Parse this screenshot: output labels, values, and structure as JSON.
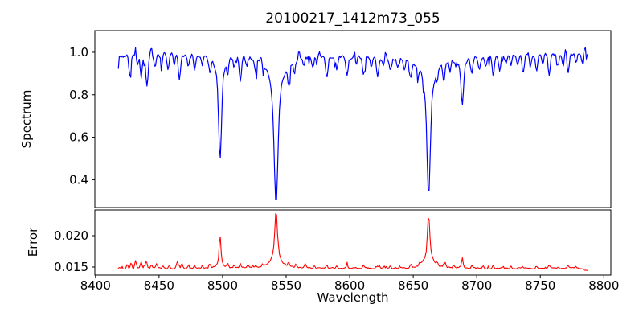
{
  "figure": {
    "background": "#ffffff",
    "frame_color": "#000000"
  },
  "chart_data": {
    "type": "line",
    "title": "20100217_1412m73_055",
    "xlabel": "Wavelength",
    "legend": "none",
    "grid": false,
    "xlim": [
      8399.5,
      8805.5
    ],
    "xticks": [
      8400,
      8450,
      8500,
      8550,
      8600,
      8650,
      8700,
      8750,
      8800
    ],
    "x_start": 8418,
    "x_end": 8787.5,
    "sample_step": 0.75,
    "noise_seed": 7,
    "panels": [
      {
        "id": "spectrum",
        "ylabel": "Spectrum",
        "line_color": "#0000ff",
        "ylim": [
          0.269,
          1.102
        ],
        "yticks": [
          0.4,
          0.6,
          0.8,
          1.0
        ],
        "ytick_labels": [
          "0.4",
          "0.6",
          "0.8",
          "1.0"
        ],
        "continuum": 0.982,
        "noise_amplitude": 0.016,
        "micro_dip_probability": 0.09,
        "micro_dip_max_depth": 0.05,
        "wiggle_amplitude": 0.008,
        "absorption_lines": [
          [
            8427,
            0.085,
            1.2
          ],
          [
            8433,
            0.05,
            0.9
          ],
          [
            8436,
            0.1,
            1.1
          ],
          [
            8440.5,
            0.155,
            1.3
          ],
          [
            8447,
            0.06,
            1.1
          ],
          [
            8452,
            0.05,
            1.0
          ],
          [
            8457,
            0.075,
            1.2
          ],
          [
            8462,
            0.05,
            1.0
          ],
          [
            8466,
            0.115,
            1.1
          ],
          [
            8473,
            0.055,
            1.0
          ],
          [
            8478,
            0.065,
            1.1
          ],
          [
            8484,
            0.045,
            1.0
          ],
          [
            8490,
            0.06,
            1.1
          ],
          [
            8498.02,
            0.49,
            1.5,
            3.2,
            0.32
          ],
          [
            8504,
            0.06,
            1.0
          ],
          [
            8509,
            0.04,
            1.0
          ],
          [
            8514,
            0.115,
            1.2
          ],
          [
            8519,
            0.04,
            1.0
          ],
          [
            8526,
            0.05,
            1.0
          ],
          [
            8542.09,
            0.7,
            1.9,
            4.6,
            0.38
          ],
          [
            8552,
            0.095,
            1.2
          ],
          [
            8556.5,
            0.06,
            1.0
          ],
          [
            8564,
            0.04,
            1.0
          ],
          [
            8571,
            0.045,
            1.0
          ],
          [
            8582,
            0.085,
            1.2
          ],
          [
            8590,
            0.05,
            1.0
          ],
          [
            8598,
            0.08,
            1.2
          ],
          [
            8605,
            0.045,
            1.0
          ],
          [
            8611,
            0.085,
            1.2
          ],
          [
            8617,
            0.05,
            1.0
          ],
          [
            8622,
            0.08,
            1.1
          ],
          [
            8627,
            0.04,
            0.9
          ],
          [
            8632,
            0.06,
            1.0
          ],
          [
            8638,
            0.045,
            1.0
          ],
          [
            8643,
            0.05,
            1.0
          ],
          [
            8648,
            0.085,
            1.2
          ],
          [
            8654,
            0.045,
            1.0
          ],
          [
            8662.14,
            0.645,
            1.7,
            4.2,
            0.36
          ],
          [
            8669,
            0.05,
            1.0
          ],
          [
            8674,
            0.09,
            1.1
          ],
          [
            8679,
            0.06,
            1.0
          ],
          [
            8688.6,
            0.215,
            1.3,
            2.4,
            0.3
          ],
          [
            8696,
            0.07,
            1.1
          ],
          [
            8702,
            0.06,
            1.0
          ],
          [
            8707,
            0.045,
            1.0
          ],
          [
            8713,
            0.1,
            1.2
          ],
          [
            8718,
            0.06,
            1.0
          ],
          [
            8723,
            0.045,
            1.0
          ],
          [
            8727,
            0.055,
            1.0
          ],
          [
            8732,
            0.04,
            1.0
          ],
          [
            8736.5,
            0.09,
            1.2
          ],
          [
            8742,
            0.06,
            1.0
          ],
          [
            8747,
            0.07,
            1.1
          ],
          [
            8752,
            0.045,
            1.0
          ],
          [
            8757,
            0.09,
            1.2
          ],
          [
            8764,
            0.06,
            1.0
          ],
          [
            8768,
            0.05,
            1.0
          ],
          [
            8772,
            0.09,
            1.1
          ],
          [
            8778,
            0.05,
            1.0
          ],
          [
            8783,
            0.045,
            1.0
          ]
        ],
        "emission_spikes": [
          [
            8432,
            0.06,
            0.8
          ],
          [
            8444,
            0.03,
            0.7
          ],
          [
            8530,
            0.035,
            0.8
          ],
          [
            8560,
            0.045,
            0.8
          ],
          [
            8576,
            0.03,
            0.7
          ],
          [
            8604,
            0.035,
            0.7
          ],
          [
            8628,
            0.045,
            0.8
          ],
          [
            8741,
            0.03,
            0.7
          ],
          [
            8770,
            0.035,
            0.7
          ],
          [
            8785,
            0.035,
            0.8
          ]
        ]
      },
      {
        "id": "error",
        "ylabel": "Error",
        "line_color": "#ff0000",
        "ylim": [
          0.01372,
          0.0241
        ],
        "yticks": [
          0.015,
          0.02
        ],
        "ytick_labels": [
          "0.015",
          "0.020"
        ],
        "baseline": 0.0148,
        "noise_amplitude": 0.00018,
        "micro_bump_probability": 0.06,
        "micro_bump_max_height": 0.0004,
        "peaks": [
          [
            8425,
            0.0007,
            0.9
          ],
          [
            8428,
            0.0009,
            0.8
          ],
          [
            8431.5,
            0.0013,
            0.9
          ],
          [
            8436,
            0.001,
            0.9
          ],
          [
            8440,
            0.0011,
            1.0
          ],
          [
            8444,
            0.0006,
            0.8
          ],
          [
            8448,
            0.0007,
            0.9
          ],
          [
            8453,
            0.0004,
            0.8
          ],
          [
            8458,
            0.0005,
            0.8
          ],
          [
            8464.5,
            0.0011,
            1.0
          ],
          [
            8468,
            0.0008,
            0.8
          ],
          [
            8473,
            0.0004,
            0.8
          ],
          [
            8478,
            0.0005,
            0.8
          ],
          [
            8484,
            0.0004,
            0.8
          ],
          [
            8490,
            0.0005,
            0.8
          ],
          [
            8498.02,
            0.0053,
            0.9,
            2.0,
            0.3
          ],
          [
            8504,
            0.0006,
            0.9
          ],
          [
            8509,
            0.0004,
            0.8
          ],
          [
            8514,
            0.0006,
            0.9
          ],
          [
            8520,
            0.0005,
            0.8
          ],
          [
            8526,
            0.0004,
            0.8
          ],
          [
            8542.09,
            0.0092,
            1.2,
            3.2,
            0.42
          ],
          [
            8552,
            0.0007,
            0.9
          ],
          [
            8558,
            0.0004,
            0.8
          ],
          [
            8565,
            0.0008,
            0.9
          ],
          [
            8572,
            0.0004,
            0.8
          ],
          [
            8582,
            0.0005,
            0.8
          ],
          [
            8590,
            0.0004,
            0.8
          ],
          [
            8598,
            0.0005,
            0.8
          ],
          [
            8611,
            0.0005,
            0.8
          ],
          [
            8622,
            0.0004,
            0.8
          ],
          [
            8632,
            0.0004,
            0.8
          ],
          [
            8648,
            0.0005,
            0.8
          ],
          [
            8655,
            0.0004,
            0.8
          ],
          [
            8662.14,
            0.0083,
            1.1,
            3.0,
            0.42
          ],
          [
            8669,
            0.0005,
            0.8
          ],
          [
            8675,
            0.0008,
            0.9
          ],
          [
            8682,
            0.0004,
            0.8
          ],
          [
            8688.6,
            0.0017,
            0.7,
            1.5,
            0.25
          ],
          [
            8696,
            0.0004,
            0.8
          ],
          [
            8705,
            0.0003,
            0.8
          ],
          [
            8713,
            0.0005,
            0.8
          ],
          [
            8720,
            0.0003,
            0.8
          ],
          [
            8727,
            0.0004,
            0.8
          ],
          [
            8736,
            0.0004,
            0.8
          ],
          [
            8747,
            0.0004,
            0.8
          ],
          [
            8757,
            0.0004,
            0.8
          ],
          [
            8764,
            0.0003,
            0.8
          ],
          [
            8772,
            0.0004,
            0.8
          ],
          [
            8778,
            0.0003,
            0.8
          ],
          [
            8786,
            -0.0004,
            2.5
          ]
        ]
      }
    ]
  }
}
